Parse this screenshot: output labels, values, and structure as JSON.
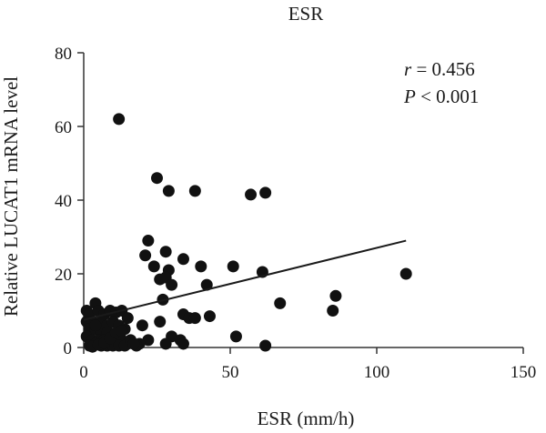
{
  "chart_data": {
    "type": "scatter",
    "title": "ESR",
    "xlabel": "ESR (mm/h)",
    "ylabel": "Relative LUCAT1 mRNA level",
    "xlim": [
      0,
      150
    ],
    "ylim": [
      0,
      80
    ],
    "xticks": [
      "0",
      "50",
      "100",
      "150"
    ],
    "yticks": [
      "0",
      "20",
      "40",
      "60",
      "80"
    ],
    "grid": false,
    "annotation": {
      "r_symbol": "r",
      "r_rest": " = 0.456",
      "p_symbol": "P",
      "p_rest": " < 0.001"
    },
    "regression_line": {
      "x": [
        0,
        110
      ],
      "y": [
        7.5,
        29
      ]
    },
    "colors": {
      "points": "#111111",
      "line": "#1a1a1a",
      "axis": "#333333"
    },
    "series": [
      {
        "points": [
          [
            12,
            62
          ],
          [
            25,
            46
          ],
          [
            29,
            42.5
          ],
          [
            38,
            42.5
          ],
          [
            57,
            41.5
          ],
          [
            62,
            42
          ],
          [
            22,
            29
          ],
          [
            28,
            26
          ],
          [
            21,
            25
          ],
          [
            34,
            24
          ],
          [
            24,
            22
          ],
          [
            29,
            21
          ],
          [
            40,
            22
          ],
          [
            51,
            22
          ],
          [
            61,
            20.5
          ],
          [
            110,
            20
          ],
          [
            26,
            18.5
          ],
          [
            28,
            19
          ],
          [
            30,
            17
          ],
          [
            42,
            17
          ],
          [
            27,
            13
          ],
          [
            67,
            12
          ],
          [
            86,
            14
          ],
          [
            85,
            10
          ],
          [
            34,
            9
          ],
          [
            36,
            8
          ],
          [
            38,
            8
          ],
          [
            43,
            8.5
          ],
          [
            26,
            7
          ],
          [
            20,
            6
          ],
          [
            52,
            3
          ],
          [
            62,
            0.5
          ],
          [
            30,
            3
          ],
          [
            33,
            2
          ],
          [
            28,
            1
          ],
          [
            34,
            1
          ],
          [
            22,
            2
          ],
          [
            19,
            1
          ],
          [
            18,
            0.5
          ],
          [
            1,
            10
          ],
          [
            2,
            9
          ],
          [
            4,
            12
          ],
          [
            5,
            10
          ],
          [
            7,
            9
          ],
          [
            9,
            10
          ],
          [
            11,
            9.5
          ],
          [
            13,
            10
          ],
          [
            15,
            8
          ],
          [
            1,
            7
          ],
          [
            3,
            7
          ],
          [
            6,
            7
          ],
          [
            8,
            6
          ],
          [
            10,
            7
          ],
          [
            12,
            6
          ],
          [
            14,
            5
          ],
          [
            2,
            5
          ],
          [
            4,
            5
          ],
          [
            6,
            4
          ],
          [
            8,
            4
          ],
          [
            10,
            3
          ],
          [
            12,
            3
          ],
          [
            1,
            3
          ],
          [
            3,
            2
          ],
          [
            5,
            2
          ],
          [
            7,
            2
          ],
          [
            9,
            1
          ],
          [
            11,
            1
          ],
          [
            13,
            2
          ],
          [
            15,
            1
          ],
          [
            2,
            0.5
          ],
          [
            4,
            1
          ],
          [
            6,
            0.5
          ],
          [
            8,
            0.5
          ],
          [
            10,
            0.5
          ],
          [
            12,
            0.5
          ],
          [
            14,
            0.5
          ],
          [
            16,
            2
          ],
          [
            17,
            1
          ],
          [
            3,
            0.2
          ],
          [
            5,
            0.8
          ],
          [
            7,
            1.2
          ],
          [
            9,
            2.5
          ],
          [
            11,
            4
          ],
          [
            13,
            4.5
          ],
          [
            4,
            6
          ]
        ]
      }
    ]
  }
}
